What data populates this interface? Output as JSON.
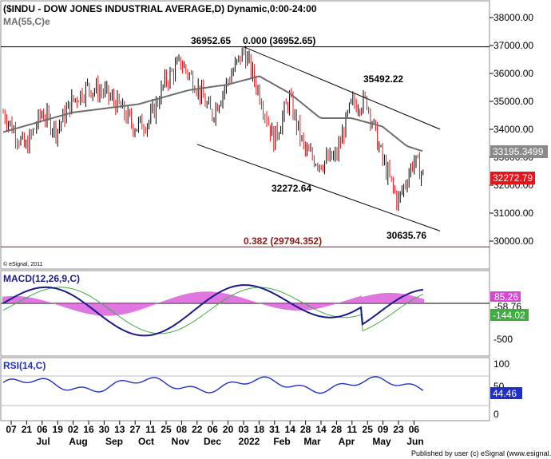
{
  "colors": {
    "up": "#000000",
    "down": "#e8141a",
    "ma": "#6e6e6e",
    "macd_line": "#1a1a8c",
    "signal_line": "#3fae3f",
    "histogram": "#d548d5",
    "rsi_line": "#1f2fc8",
    "fib": "#8b1a1a",
    "channel": "#000000"
  },
  "price_panel": {
    "title": "($INDU - DOW JONES INDUSTRIAL AVERAGE,D) Dynamic,0:00-24:00",
    "ma_label": "MA(55,C)e",
    "credit": "© eSignal, 2011",
    "y_ticks": [
      "38000.00",
      "37000.00",
      "36000.00",
      "35000.00",
      "34000.00",
      "33000.00",
      "32000.00",
      "31000.00",
      "30000.00"
    ],
    "ma_value": "33195.3499",
    "last_value": "32272.79",
    "fib_label_top": "0.000 (36952.65)",
    "fib_label_bottom": "0.382 (29794.352)",
    "annotations": [
      {
        "text": "36952.65",
        "price": 36952.65
      },
      {
        "text": "35492.22",
        "price": 35492.22
      },
      {
        "text": "32272.64",
        "price": 32272.64
      },
      {
        "text": "30635.76",
        "price": 30635.76
      }
    ]
  },
  "macd_panel": {
    "title": "MACD(12,26,9,C)",
    "y_ticks": [
      "-500"
    ],
    "value_hist": "85.26",
    "value_macd": "-58.76",
    "value_signal": "-144.02"
  },
  "rsi_panel": {
    "title": "RSI(14,C)",
    "y_ticks": [
      "100",
      "50",
      "0"
    ],
    "value": "44.46"
  },
  "x_axis": {
    "day_ticks": [
      "07",
      "21",
      "06",
      "19",
      "02",
      "16",
      "30",
      "13",
      "27",
      "11",
      "25",
      "08",
      "22",
      "06",
      "20",
      "03",
      "18",
      "31",
      "14",
      "28",
      "14",
      "28",
      "11",
      "25",
      "09",
      "23",
      "06"
    ],
    "month_labels": [
      "Jul",
      "Aug",
      "Sep",
      "Oct",
      "Nov",
      "Dec",
      "2022",
      "Feb",
      "Mar",
      "Apr",
      "May",
      "Jun"
    ]
  },
  "footer": "Published by user (c) eSignal (www.esignal.com)",
  "chart_data": {
    "type": "candlestick",
    "title": "($INDU - DOW JONES INDUSTRIAL AVERAGE,D) Dynamic,0:00-24:00",
    "ylim": [
      29600,
      38500
    ],
    "key_levels": {
      "fib_0": 36952.65,
      "fib_0382": 29794.352,
      "high_1": 36952.65,
      "high_2": 35492.22,
      "low_1": 32272.64,
      "low_2": 30635.76,
      "last_close": 32272.79,
      "ma55": 33195.3499
    },
    "channel_upper": [
      {
        "date": "2022-01-04",
        "price": 36952.65
      },
      {
        "date": "2022-04-21",
        "price": 35492.22
      },
      {
        "date": "2022-06-30",
        "price": 34000
      }
    ],
    "channel_lower": [
      {
        "date": "2021-11-23",
        "price": 33460
      },
      {
        "date": "2022-03-08",
        "price": 32272.64
      },
      {
        "date": "2022-05-20",
        "price": 30635.76
      },
      {
        "date": "2022-06-30",
        "price": 30360
      }
    ],
    "close_path": [
      {
        "date": "2021-06-01",
        "close": 34600
      },
      {
        "date": "2021-06-21",
        "close": 33300
      },
      {
        "date": "2021-07-06",
        "close": 34600
      },
      {
        "date": "2021-07-19",
        "close": 33960
      },
      {
        "date": "2021-08-02",
        "close": 35000
      },
      {
        "date": "2021-08-16",
        "close": 35500
      },
      {
        "date": "2021-08-30",
        "close": 35350
      },
      {
        "date": "2021-09-13",
        "close": 34850
      },
      {
        "date": "2021-09-27",
        "close": 34100
      },
      {
        "date": "2021-10-11",
        "close": 34300
      },
      {
        "date": "2021-10-25",
        "close": 35700
      },
      {
        "date": "2021-11-08",
        "close": 36400
      },
      {
        "date": "2021-11-22",
        "close": 35600
      },
      {
        "date": "2021-12-06",
        "close": 34500
      },
      {
        "date": "2021-12-20",
        "close": 35700
      },
      {
        "date": "2022-01-04",
        "close": 36800
      },
      {
        "date": "2022-01-18",
        "close": 35300
      },
      {
        "date": "2022-01-31",
        "close": 33600
      },
      {
        "date": "2022-02-14",
        "close": 35100
      },
      {
        "date": "2022-02-28",
        "close": 33200
      },
      {
        "date": "2022-03-14",
        "close": 32800
      },
      {
        "date": "2022-03-28",
        "close": 33000
      },
      {
        "date": "2022-04-11",
        "close": 34900
      },
      {
        "date": "2022-04-25",
        "close": 35000
      },
      {
        "date": "2022-05-09",
        "close": 32900
      },
      {
        "date": "2022-05-23",
        "close": 31400
      },
      {
        "date": "2022-06-06",
        "close": 32900
      },
      {
        "date": "2022-06-16",
        "close": 32272.79
      }
    ],
    "ma55_path": [
      {
        "date": "2021-06-01",
        "value": 33900
      },
      {
        "date": "2021-08-02",
        "value": 34600
      },
      {
        "date": "2021-10-01",
        "value": 34900
      },
      {
        "date": "2021-11-15",
        "value": 35400
      },
      {
        "date": "2021-12-20",
        "value": 35600
      },
      {
        "date": "2022-01-18",
        "value": 35900
      },
      {
        "date": "2022-02-14",
        "value": 35300
      },
      {
        "date": "2022-03-14",
        "value": 34400
      },
      {
        "date": "2022-04-11",
        "value": 34400
      },
      {
        "date": "2022-05-09",
        "value": 34100
      },
      {
        "date": "2022-05-31",
        "value": 33400
      },
      {
        "date": "2022-06-16",
        "value": 33195.3499
      }
    ],
    "rsi_last": 44.46,
    "macd_last": {
      "histogram": 85.26,
      "macd": -58.76,
      "signal": -144.02
    }
  }
}
